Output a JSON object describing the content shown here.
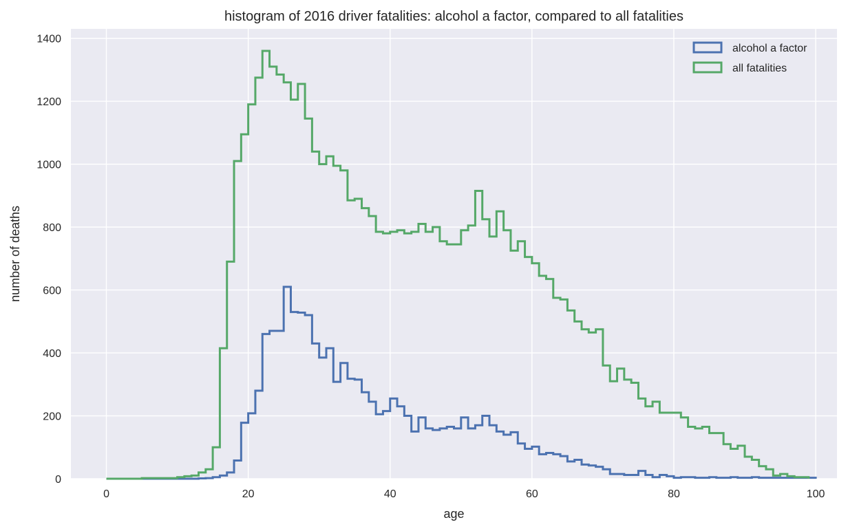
{
  "chart_data": {
    "type": "histogram-step",
    "title": "histogram of 2016 driver fatalities: alcohol a factor, compared to all fatalities",
    "xlabel": "age",
    "ylabel": "number of deaths",
    "xlim": [
      -5,
      103
    ],
    "ylim": [
      0,
      1430
    ],
    "xticks": [
      0,
      20,
      40,
      60,
      80,
      100
    ],
    "yticks": [
      0,
      200,
      400,
      600,
      800,
      1000,
      1200,
      1400
    ],
    "grid": true,
    "legend_position": "top-right",
    "bin_edges_start": 0,
    "bin_width": 1,
    "background_color": "#eaeaf2",
    "series": [
      {
        "name": "alcohol a factor",
        "color": "#4c72b0",
        "values": [
          0,
          0,
          0,
          0,
          0,
          0,
          0,
          0,
          0,
          0,
          0,
          0,
          0,
          1,
          2,
          5,
          10,
          20,
          58,
          178,
          208,
          280,
          460,
          470,
          470,
          610,
          530,
          528,
          520,
          430,
          385,
          415,
          308,
          368,
          318,
          315,
          275,
          245,
          205,
          215,
          255,
          230,
          200,
          150,
          195,
          160,
          155,
          160,
          165,
          160,
          195,
          160,
          170,
          200,
          170,
          150,
          140,
          148,
          112,
          95,
          102,
          78,
          82,
          78,
          72,
          55,
          60,
          45,
          42,
          38,
          30,
          15,
          15,
          12,
          12,
          25,
          12,
          5,
          12,
          8,
          3,
          5,
          5,
          3,
          3,
          5,
          3,
          3,
          5,
          3,
          3,
          5,
          3,
          3,
          3,
          3,
          3,
          3,
          3,
          3
        ]
      },
      {
        "name": "all fatalities",
        "color": "#55a868",
        "values": [
          0,
          0,
          0,
          0,
          0,
          2,
          2,
          2,
          2,
          2,
          5,
          8,
          10,
          20,
          30,
          100,
          415,
          690,
          1010,
          1095,
          1190,
          1275,
          1360,
          1310,
          1285,
          1260,
          1205,
          1255,
          1145,
          1040,
          1000,
          1025,
          995,
          980,
          885,
          890,
          860,
          835,
          785,
          780,
          785,
          790,
          780,
          785,
          810,
          785,
          800,
          755,
          745,
          745,
          790,
          805,
          915,
          825,
          770,
          850,
          790,
          725,
          755,
          705,
          685,
          645,
          635,
          575,
          570,
          535,
          500,
          475,
          465,
          475,
          360,
          310,
          350,
          315,
          305,
          255,
          230,
          245,
          210,
          210,
          210,
          195,
          165,
          160,
          165,
          145,
          145,
          110,
          95,
          105,
          70,
          60,
          40,
          30,
          10,
          15,
          8,
          5,
          5
        ]
      }
    ]
  }
}
